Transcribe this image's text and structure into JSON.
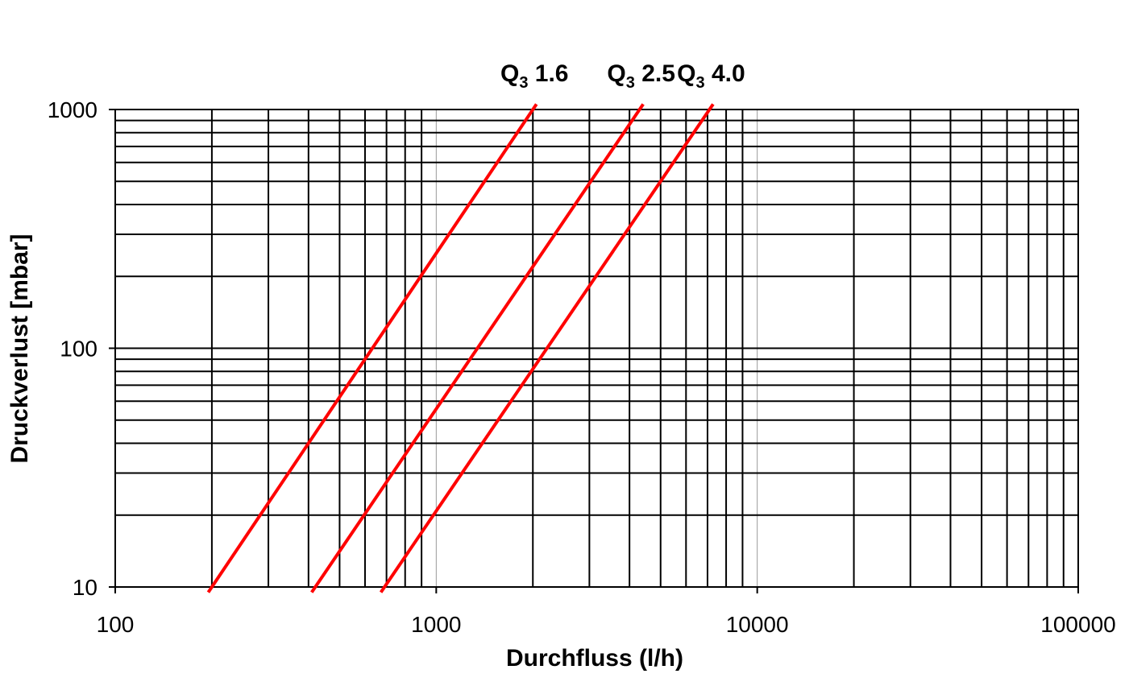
{
  "chart_data": {
    "type": "line",
    "xlabel": "Durchfluss (l/h)",
    "ylabel": "Druckverlust [mbar]",
    "xscale": "log",
    "yscale": "log",
    "xlim": [
      100,
      100000
    ],
    "ylim": [
      10,
      1000
    ],
    "grid": true,
    "x_ticks": [
      "100",
      "1000",
      "10000",
      "100000"
    ],
    "y_ticks": [
      "10",
      "100",
      "1000"
    ],
    "series": [
      {
        "label_main": "Q",
        "label_sub": "3",
        "label_value": "1.6",
        "color": "#ff0000",
        "points": [
          [
            200,
            10
          ],
          [
            2000,
            1000
          ]
        ]
      },
      {
        "label_main": "Q",
        "label_sub": "3",
        "label_value": "2.5",
        "color": "#ff0000",
        "points": [
          [
            420,
            10
          ],
          [
            4300,
            1000
          ]
        ]
      },
      {
        "label_main": "Q",
        "label_sub": "3",
        "label_value": "4.0",
        "color": "#ff0000",
        "points": [
          [
            690,
            10
          ],
          [
            7100,
            1000
          ]
        ]
      }
    ]
  }
}
